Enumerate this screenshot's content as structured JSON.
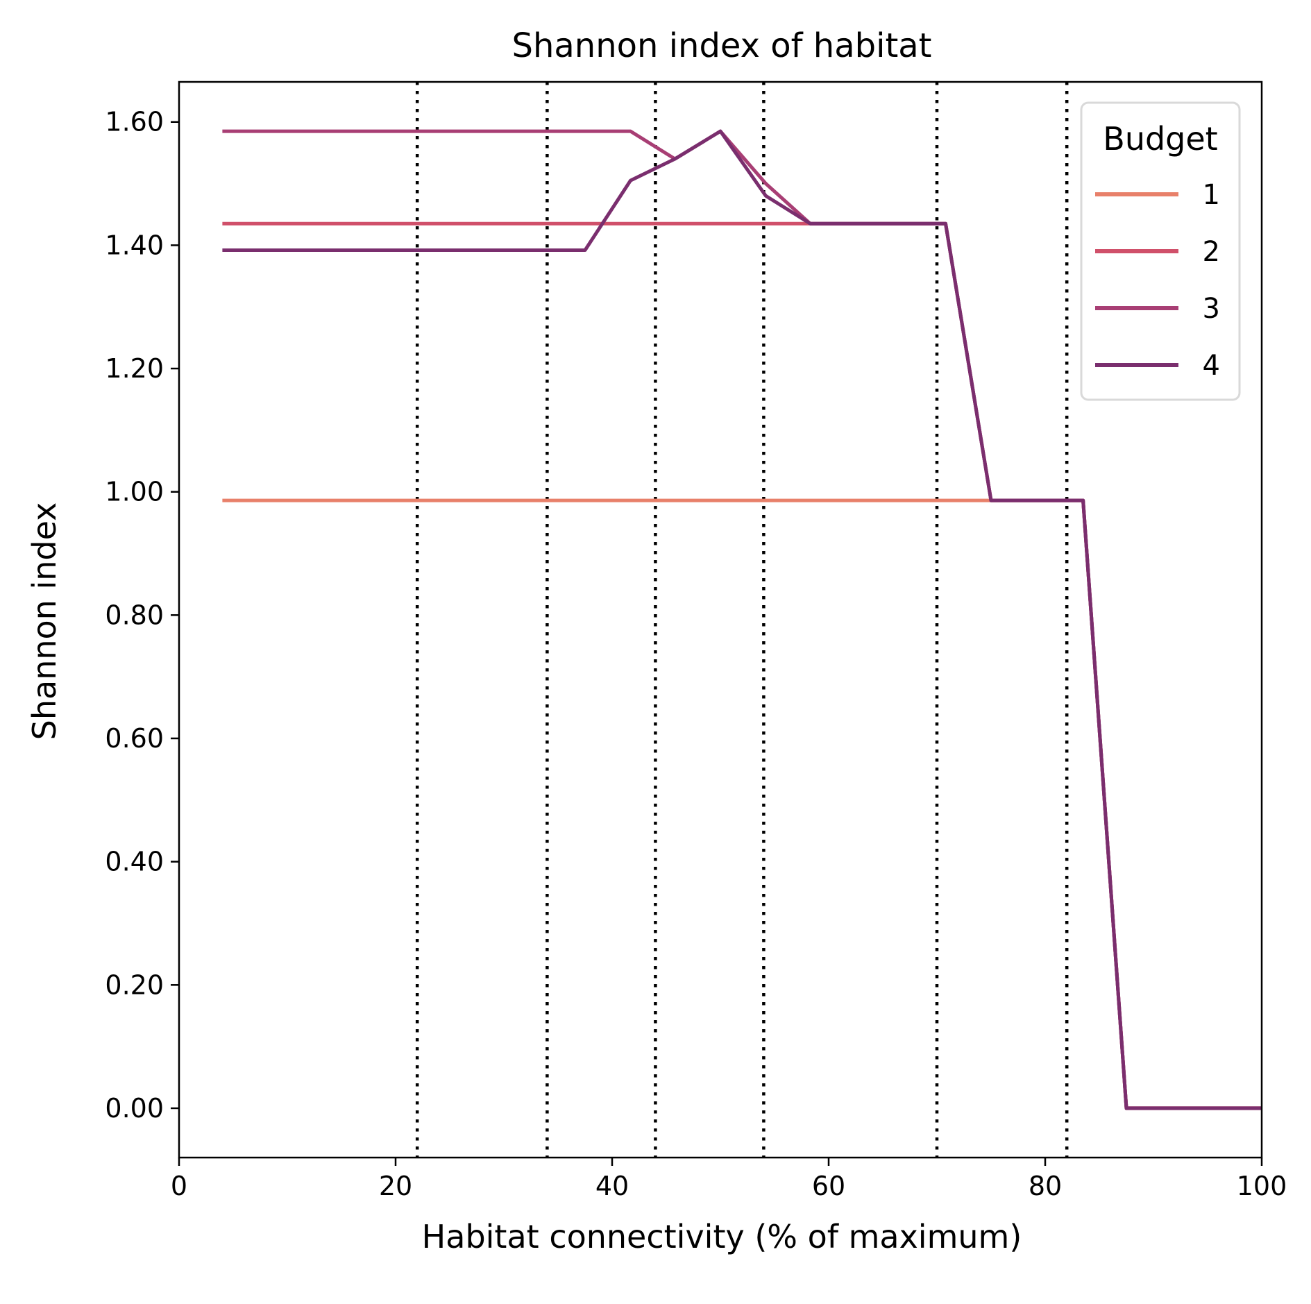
{
  "chart_data": {
    "type": "line",
    "title": "Shannon index of habitat",
    "xlabel": "Habitat connectivity (% of maximum)",
    "ylabel": "Shannon index",
    "xlim": [
      0,
      100
    ],
    "ylim": [
      -0.08,
      1.665
    ],
    "xticks": [
      0,
      20,
      40,
      60,
      80,
      100
    ],
    "yticks": [
      0.0,
      0.2,
      0.4,
      0.6,
      0.8,
      1.0,
      1.2,
      1.4,
      1.6
    ],
    "xtick_labels": [
      "0",
      "20",
      "40",
      "60",
      "80",
      "100"
    ],
    "ytick_labels": [
      "0.00",
      "0.20",
      "0.40",
      "0.60",
      "0.80",
      "1.00",
      "1.20",
      "1.40",
      "1.60"
    ],
    "grid": false,
    "vlines": [
      22,
      34,
      44,
      54,
      70,
      82
    ],
    "vline_style": "dotted",
    "legend": {
      "title": "Budget",
      "placement": "top-right"
    },
    "series": [
      {
        "name": "1",
        "color": "#e8806a",
        "x": [
          4,
          75,
          83.5,
          87.5,
          100
        ],
        "y": [
          0.986,
          0.986,
          0.986,
          0,
          0
        ]
      },
      {
        "name": "2",
        "color": "#d0506a",
        "x": [
          4,
          70.8,
          75,
          83.5,
          87.5,
          100
        ],
        "y": [
          1.435,
          1.435,
          0.986,
          0.986,
          0,
          0
        ]
      },
      {
        "name": "3",
        "color": "#a83e74",
        "x": [
          4,
          41.7,
          45.8,
          50,
          54.2,
          58.3,
          70.8,
          75,
          83.5,
          87.5,
          100
        ],
        "y": [
          1.585,
          1.585,
          1.54,
          1.585,
          1.5,
          1.435,
          1.435,
          0.986,
          0.986,
          0,
          0
        ]
      },
      {
        "name": "4",
        "color": "#7a2e6e",
        "x": [
          4,
          37.5,
          41.7,
          45.8,
          50,
          54.2,
          58.3,
          70.8,
          75,
          83.5,
          87.5,
          100
        ],
        "y": [
          1.392,
          1.392,
          1.505,
          1.54,
          1.585,
          1.48,
          1.435,
          1.435,
          0.986,
          0.986,
          0,
          0
        ]
      }
    ]
  }
}
